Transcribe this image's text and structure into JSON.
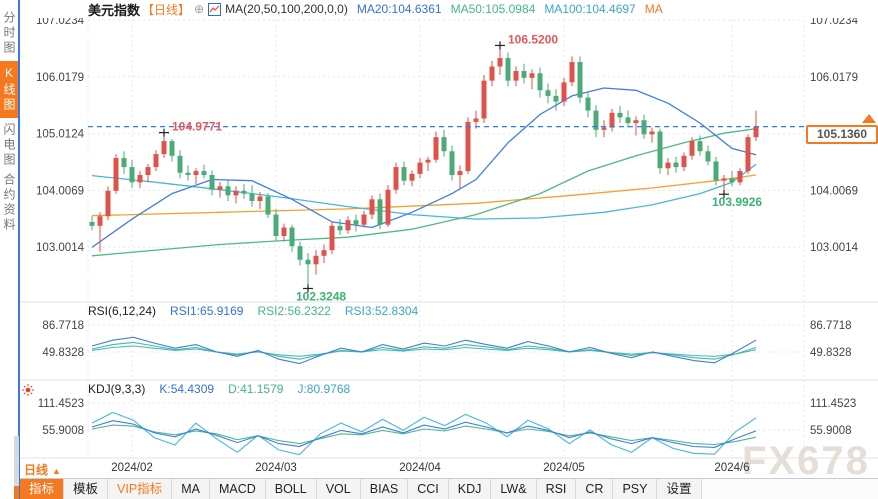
{
  "header": {
    "symbol": "美元指数",
    "period_tag": "【日线】",
    "add_icon": "⊕",
    "ma_label": "MA(20,50,100,200,0,0)",
    "ma_values": [
      {
        "label": "MA20:104.6361",
        "color": "#3272d9"
      },
      {
        "label": "MA50:105.0984",
        "color": "#42b97d"
      },
      {
        "label": "MA100:104.4697",
        "color": "#3aa6c9"
      },
      {
        "label": "MA",
        "color": "#f57a1f"
      }
    ],
    "window_icons": [
      "crosshair-pan-icon",
      "scale-left-axis-icon",
      "scale-right-axis-icon",
      "detach-window-icon"
    ]
  },
  "sidebar": {
    "items": [
      {
        "label": "分时图",
        "active": false
      },
      {
        "label": "K线图",
        "active": true
      },
      {
        "label": "闪电图",
        "active": false
      },
      {
        "label": "合约资料",
        "active": false
      }
    ]
  },
  "period_selector": {
    "label": "日线",
    "arrow": "▲"
  },
  "price_box": {
    "value": "105.1360"
  },
  "watermark": "FX678",
  "toolbar": {
    "items": [
      {
        "label": "指标",
        "style": "active"
      },
      {
        "label": "模板"
      },
      {
        "label": "VIP指标",
        "style": "vip"
      },
      {
        "label": "MA"
      },
      {
        "label": "MACD"
      },
      {
        "label": "BOLL"
      },
      {
        "label": "VOL"
      },
      {
        "label": "BIAS"
      },
      {
        "label": "CCI"
      },
      {
        "label": "KDJ"
      },
      {
        "label": "LW&"
      },
      {
        "label": "RSI"
      },
      {
        "label": "CR"
      },
      {
        "label": "PSY"
      },
      {
        "label": "设置"
      }
    ]
  },
  "chart_data": {
    "type": "candlestick",
    "title": "美元指数 日线",
    "colors": {
      "up": "#e0514b",
      "down": "#4bab77",
      "dashed_line": "#2f7ded",
      "grid": "#e3e7ed",
      "axis_text": "#444"
    },
    "current_price": 105.136,
    "y_axis_main": [
      107.0234,
      106.0179,
      105.0124,
      104.0069,
      103.0014
    ],
    "x_labels": [
      "2024/02",
      "2024/03",
      "2024/04",
      "2024/05",
      "2024/6"
    ],
    "x_tick_indices": [
      5,
      23,
      41,
      59,
      80
    ],
    "annotations": [
      {
        "text": "104.9771",
        "value": 104.9771,
        "index": 9,
        "type": "high",
        "color": "#e8565a"
      },
      {
        "text": "106.5200",
        "value": 106.52,
        "index": 51,
        "type": "high",
        "color": "#e8565a"
      },
      {
        "text": "102.3248",
        "value": 102.3248,
        "index": 27,
        "type": "low",
        "color": "#3cb371"
      },
      {
        "text": "103.9926",
        "value": 103.9926,
        "index": 79,
        "type": "low",
        "color": "#3cb371"
      }
    ],
    "candles": [
      [
        103.45,
        103.55,
        103.3,
        103.38
      ],
      [
        103.38,
        103.62,
        102.92,
        103.55
      ],
      [
        103.55,
        104.08,
        103.48,
        104.0
      ],
      [
        104.0,
        104.65,
        103.95,
        104.58
      ],
      [
        104.58,
        104.7,
        104.3,
        104.42
      ],
      [
        104.42,
        104.55,
        104.05,
        104.15
      ],
      [
        104.15,
        104.35,
        104.05,
        104.28
      ],
      [
        104.28,
        104.48,
        104.15,
        104.42
      ],
      [
        104.42,
        104.72,
        104.35,
        104.65
      ],
      [
        104.65,
        104.9771,
        104.58,
        104.88
      ],
      [
        104.88,
        104.92,
        104.52,
        104.62
      ],
      [
        104.62,
        104.72,
        104.22,
        104.32
      ],
      [
        104.32,
        104.45,
        104.18,
        104.28
      ],
      [
        104.28,
        104.4,
        104.12,
        104.35
      ],
      [
        104.35,
        104.46,
        104.22,
        104.28
      ],
      [
        104.28,
        104.36,
        103.92,
        104.02
      ],
      [
        104.02,
        104.16,
        103.88,
        104.08
      ],
      [
        104.08,
        104.18,
        103.82,
        103.92
      ],
      [
        103.92,
        104.08,
        103.78,
        104.0
      ],
      [
        104.0,
        104.12,
        103.86,
        103.95
      ],
      [
        103.95,
        104.1,
        103.72,
        103.82
      ],
      [
        103.82,
        103.98,
        103.68,
        103.9
      ],
      [
        103.9,
        103.96,
        103.52,
        103.58
      ],
      [
        103.58,
        103.68,
        103.12,
        103.2
      ],
      [
        103.2,
        103.42,
        103.1,
        103.35
      ],
      [
        103.35,
        103.4,
        102.92,
        103.02
      ],
      [
        103.02,
        103.1,
        102.68,
        102.78
      ],
      [
        102.78,
        102.9,
        102.3248,
        102.7
      ],
      [
        102.7,
        102.95,
        102.52,
        102.85
      ],
      [
        102.85,
        103.05,
        102.72,
        102.95
      ],
      [
        102.95,
        103.45,
        102.88,
        103.38
      ],
      [
        103.38,
        103.5,
        103.22,
        103.3
      ],
      [
        103.3,
        103.55,
        103.24,
        103.48
      ],
      [
        103.48,
        103.58,
        103.28,
        103.4
      ],
      [
        103.4,
        103.65,
        103.35,
        103.58
      ],
      [
        103.58,
        103.92,
        103.5,
        103.85
      ],
      [
        103.85,
        103.95,
        103.32,
        103.4
      ],
      [
        103.4,
        104.1,
        103.36,
        104.02
      ],
      [
        104.02,
        104.5,
        103.95,
        104.42
      ],
      [
        104.42,
        104.52,
        104.1,
        104.18
      ],
      [
        104.18,
        104.36,
        104.08,
        104.3
      ],
      [
        104.3,
        104.58,
        104.22,
        104.5
      ],
      [
        104.5,
        104.6,
        104.35,
        104.55
      ],
      [
        104.55,
        105.05,
        104.5,
        104.95
      ],
      [
        104.95,
        105.08,
        104.6,
        104.7
      ],
      [
        104.7,
        104.8,
        104.18,
        104.28
      ],
      [
        104.28,
        104.45,
        104.05,
        104.35
      ],
      [
        104.35,
        105.3,
        104.3,
        105.22
      ],
      [
        105.22,
        105.42,
        105.1,
        105.28
      ],
      [
        105.28,
        106.05,
        105.2,
        105.95
      ],
      [
        105.95,
        106.3,
        105.85,
        106.2
      ],
      [
        106.2,
        106.52,
        106.05,
        106.35
      ],
      [
        106.35,
        106.45,
        105.85,
        105.95
      ],
      [
        105.95,
        106.2,
        105.85,
        106.12
      ],
      [
        106.12,
        106.25,
        105.9,
        106.0
      ],
      [
        106.0,
        106.15,
        105.8,
        106.08
      ],
      [
        106.08,
        106.18,
        105.65,
        105.78
      ],
      [
        105.78,
        105.9,
        105.55,
        105.68
      ],
      [
        105.68,
        105.8,
        105.42,
        105.58
      ],
      [
        105.58,
        106.0,
        105.5,
        105.92
      ],
      [
        105.92,
        106.38,
        105.85,
        106.28
      ],
      [
        106.28,
        106.38,
        105.55,
        105.65
      ],
      [
        105.65,
        105.75,
        105.3,
        105.42
      ],
      [
        105.42,
        105.52,
        104.95,
        105.08
      ],
      [
        105.08,
        105.25,
        104.95,
        105.12
      ],
      [
        105.12,
        105.45,
        105.05,
        105.38
      ],
      [
        105.38,
        105.5,
        105.2,
        105.3
      ],
      [
        105.3,
        105.42,
        105.12,
        105.2
      ],
      [
        105.2,
        105.32,
        104.98,
        105.25
      ],
      [
        105.25,
        105.35,
        104.92,
        105.0
      ],
      [
        105.0,
        105.12,
        104.85,
        105.05
      ],
      [
        105.05,
        105.1,
        104.3,
        104.4
      ],
      [
        104.4,
        104.58,
        104.28,
        104.5
      ],
      [
        104.5,
        104.6,
        104.32,
        104.42
      ],
      [
        104.42,
        104.68,
        104.35,
        104.62
      ],
      [
        104.62,
        104.95,
        104.55,
        104.88
      ],
      [
        104.88,
        104.98,
        104.62,
        104.7
      ],
      [
        104.7,
        104.8,
        104.45,
        104.52
      ],
      [
        104.52,
        104.6,
        104.1,
        104.18
      ],
      [
        104.18,
        104.28,
        103.9926,
        104.22
      ],
      [
        104.22,
        104.35,
        104.08,
        104.15
      ],
      [
        104.15,
        104.4,
        104.1,
        104.35
      ],
      [
        104.35,
        105.0,
        104.3,
        104.95
      ],
      [
        104.95,
        105.42,
        104.88,
        105.136
      ]
    ],
    "ma_lines": [
      {
        "name": "MA200",
        "color": "#f5a033",
        "points": [
          [
            0,
            103.56
          ],
          [
            16,
            103.62
          ],
          [
            32,
            103.68
          ],
          [
            48,
            103.78
          ],
          [
            60,
            103.92
          ],
          [
            70,
            104.05
          ],
          [
            78,
            104.18
          ],
          [
            83,
            104.28
          ]
        ]
      },
      {
        "name": "MA100",
        "color": "#45b8d8",
        "points": [
          [
            0,
            104.27
          ],
          [
            8,
            104.15
          ],
          [
            16,
            104.02
          ],
          [
            24,
            103.88
          ],
          [
            32,
            103.72
          ],
          [
            40,
            103.58
          ],
          [
            48,
            103.5
          ],
          [
            56,
            103.52
          ],
          [
            64,
            103.62
          ],
          [
            70,
            103.75
          ],
          [
            76,
            103.95
          ],
          [
            80,
            104.15
          ],
          [
            83,
            104.47
          ]
        ]
      },
      {
        "name": "MA50",
        "color": "#4fb98a",
        "points": [
          [
            0,
            102.85
          ],
          [
            8,
            102.95
          ],
          [
            16,
            103.05
          ],
          [
            24,
            103.12
          ],
          [
            32,
            103.18
          ],
          [
            40,
            103.32
          ],
          [
            48,
            103.58
          ],
          [
            56,
            103.95
          ],
          [
            62,
            104.35
          ],
          [
            68,
            104.62
          ],
          [
            74,
            104.85
          ],
          [
            79,
            105.02
          ],
          [
            83,
            105.1
          ]
        ]
      },
      {
        "name": "MA20",
        "color": "#3f7de0",
        "points": [
          [
            0,
            103.0
          ],
          [
            5,
            103.5
          ],
          [
            10,
            103.95
          ],
          [
            15,
            104.2
          ],
          [
            20,
            104.18
          ],
          [
            25,
            103.85
          ],
          [
            30,
            103.45
          ],
          [
            35,
            103.35
          ],
          [
            40,
            103.62
          ],
          [
            45,
            103.95
          ],
          [
            48,
            104.2
          ],
          [
            52,
            104.85
          ],
          [
            56,
            105.35
          ],
          [
            60,
            105.68
          ],
          [
            64,
            105.82
          ],
          [
            68,
            105.78
          ],
          [
            72,
            105.55
          ],
          [
            76,
            105.2
          ],
          [
            80,
            104.75
          ],
          [
            83,
            104.64
          ]
        ]
      }
    ],
    "rsi": {
      "params": "RSI(6,12,24)",
      "y_ticks": [
        86.7718,
        49.8328
      ],
      "values": [
        {
          "label": "RSI1:65.9169",
          "color": "#3272d9"
        },
        {
          "label": "RSI2:56.2322",
          "color": "#42b97d"
        },
        {
          "label": "RSI3:52.8304",
          "color": "#3aa6c9"
        }
      ],
      "series": [
        {
          "name": "RSI3",
          "color": "#45b8d8",
          "values": [
            52,
            56,
            58,
            55,
            52,
            54,
            50,
            47,
            50,
            46,
            44,
            47,
            51,
            50,
            53,
            51,
            54,
            53,
            56,
            54,
            52,
            55,
            53,
            50,
            52,
            49,
            47,
            49,
            47,
            45,
            44,
            47,
            53
          ]
        },
        {
          "name": "RSI2",
          "color": "#4fb98a",
          "values": [
            54,
            60,
            63,
            58,
            53,
            56,
            50,
            46,
            51,
            44,
            40,
            46,
            52,
            50,
            56,
            52,
            57,
            55,
            60,
            57,
            53,
            58,
            55,
            50,
            53,
            49,
            45,
            49,
            46,
            42,
            40,
            47,
            56
          ]
        },
        {
          "name": "RSI1",
          "color": "#3f7de0",
          "values": [
            58,
            66,
            70,
            62,
            55,
            60,
            50,
            44,
            52,
            40,
            34,
            45,
            55,
            50,
            60,
            54,
            62,
            58,
            66,
            60,
            55,
            64,
            58,
            50,
            56,
            48,
            42,
            50,
            44,
            38,
            35,
            50,
            66
          ]
        }
      ]
    },
    "kdj": {
      "params": "KDJ(9,3,3)",
      "y_ticks": [
        111.4523,
        55.9008
      ],
      "values": [
        {
          "label": "K:54.4309",
          "color": "#3272d9"
        },
        {
          "label": "D:41.1579",
          "color": "#42b97d"
        },
        {
          "label": "J:80.9768",
          "color": "#3aa6c9"
        }
      ],
      "series": [
        {
          "name": "J",
          "color": "#45b8d8",
          "values": [
            70,
            92,
            76,
            40,
            25,
            70,
            38,
            10,
            45,
            15,
            5,
            48,
            70,
            52,
            78,
            55,
            82,
            65,
            88,
            70,
            42,
            76,
            58,
            28,
            56,
            26,
            10,
            40,
            18,
            8,
            6,
            52,
            81
          ]
        },
        {
          "name": "D",
          "color": "#4fb98a",
          "values": [
            58,
            66,
            64,
            52,
            46,
            54,
            48,
            36,
            44,
            34,
            28,
            38,
            48,
            46,
            55,
            48,
            58,
            54,
            64,
            58,
            50,
            58,
            53,
            44,
            50,
            42,
            34,
            40,
            34,
            28,
            26,
            32,
            41
          ]
        },
        {
          "name": "K",
          "color": "#3f7de0",
          "values": [
            62,
            75,
            68,
            50,
            42,
            58,
            45,
            30,
            44,
            28,
            22,
            40,
            55,
            48,
            62,
            50,
            66,
            58,
            72,
            62,
            50,
            64,
            55,
            40,
            52,
            38,
            28,
            40,
            30,
            22,
            20,
            38,
            54
          ]
        }
      ]
    }
  }
}
